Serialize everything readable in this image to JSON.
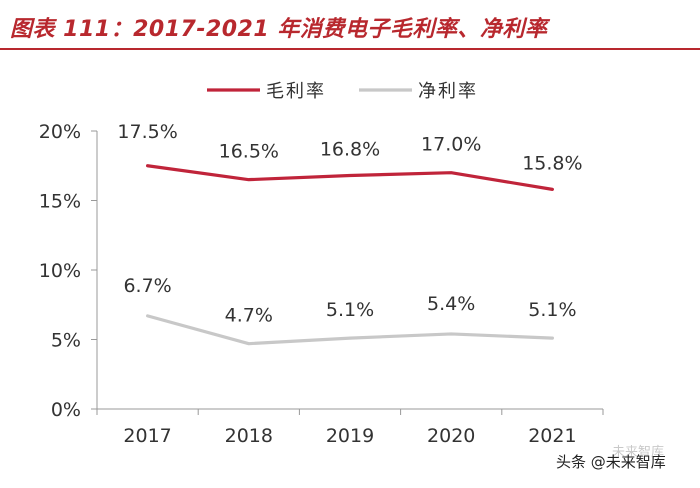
{
  "title": "图表 111：2017-2021 年消费电子毛利率、净利率",
  "watermark": {
    "main": "头条 @未来智库",
    "ghost": "未来智库"
  },
  "colors": {
    "title": "#b8282e",
    "gross_margin": "#c0243a",
    "net_margin": "#c8c8c8",
    "axis": "#999999",
    "text": "#333333"
  },
  "chart_data": {
    "type": "line",
    "title": "",
    "xlabel": "",
    "ylabel": "",
    "categories": [
      "2017",
      "2018",
      "2019",
      "2020",
      "2021"
    ],
    "ylim": [
      0,
      20
    ],
    "yticks": [
      0,
      5,
      10,
      15,
      20
    ],
    "ytick_labels": [
      "0%",
      "5%",
      "10%",
      "15%",
      "20%"
    ],
    "grid": false,
    "legend_position": "top-center",
    "series": [
      {
        "name": "毛利率",
        "values": [
          17.5,
          16.5,
          16.8,
          17.0,
          15.8
        ],
        "labels": [
          "17.5%",
          "16.5%",
          "16.8%",
          "17.0%",
          "15.8%"
        ],
        "color": "#c0243a"
      },
      {
        "name": "净利率",
        "values": [
          6.7,
          4.7,
          5.1,
          5.4,
          5.1
        ],
        "labels": [
          "6.7%",
          "4.7%",
          "5.1%",
          "5.4%",
          "5.1%"
        ],
        "color": "#c8c8c8"
      }
    ]
  }
}
